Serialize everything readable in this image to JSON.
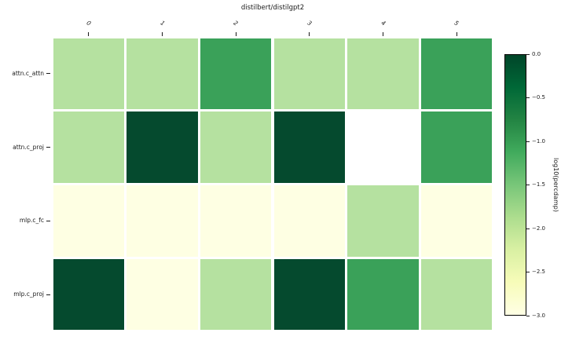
{
  "chart_data": {
    "type": "heatmap",
    "title": "distilbert/distilgpt2",
    "columns": [
      "0",
      "1",
      "2",
      "3",
      "4",
      "5"
    ],
    "rows": [
      "attn.c_attn",
      "attn.c_proj",
      "mlp.c_fc",
      "mlp.c_proj"
    ],
    "values": [
      [
        -2,
        -2,
        -1,
        -2,
        -2,
        -1
      ],
      [
        -2,
        0,
        -2,
        0,
        null,
        -1
      ],
      [
        -3,
        -3,
        -3,
        -3,
        -2,
        -3
      ],
      [
        0,
        -3,
        -2,
        0,
        -1,
        -2
      ]
    ],
    "vmin": -3,
    "vmax": 0,
    "value_colors": {
      "0": "#054a2e",
      "-1": "#3aa159",
      "-2": "#b5e1a0",
      "-3": "#feffe3"
    },
    "missing_color": "#ffffff",
    "grid_gap_color": "#ffffff",
    "colorbar": {
      "label": "log10(percdamp)",
      "ticks": [
        "0.0",
        "−0.5",
        "−1.0",
        "−1.5",
        "−2.0",
        "−2.5",
        "−3.0"
      ],
      "gradient_stops_top_to_bottom": [
        "#004529",
        "#006837",
        "#238443",
        "#41ab5d",
        "#78c679",
        "#addd8e",
        "#d9f0a3",
        "#f7fcb9",
        "#ffffe5"
      ]
    }
  }
}
